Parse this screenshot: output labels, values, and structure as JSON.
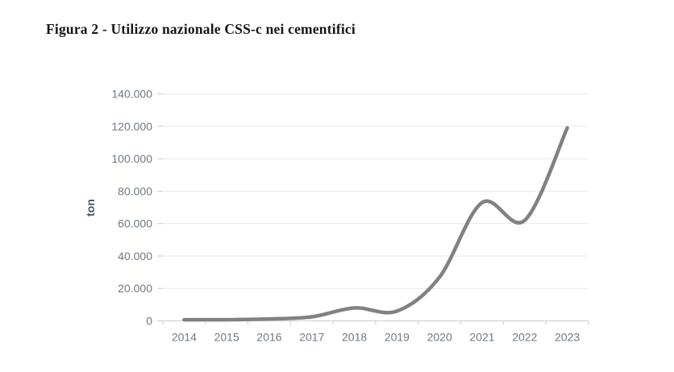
{
  "figure": {
    "title": "Figura 2 - Utilizzo nazionale CSS-c nei cementifici"
  },
  "chart_data": {
    "type": "line",
    "title": "Figura 2 - Utilizzo nazionale CSS-c nei cementifici",
    "series": [
      {
        "name": "Utilizzo nazionale CSS-c",
        "values": [
          700,
          700,
          1200,
          2500,
          8000,
          6000,
          27000,
          73000,
          62000,
          119000
        ]
      }
    ],
    "categories": [
      "2014",
      "2015",
      "2016",
      "2017",
      "2018",
      "2019",
      "2020",
      "2021",
      "2022",
      "2023"
    ],
    "xlabel": "",
    "ylabel": "ton",
    "ylim": [
      0,
      140000
    ],
    "ytick_interval": 20000,
    "ytick_labels": [
      "0",
      "20.000",
      "40.000",
      "60.000",
      "80.000",
      "100.000",
      "120.000",
      "140.000"
    ],
    "grid": "horizontal",
    "smooth": true,
    "markers": "none",
    "legend": "none",
    "colors": {
      "line": "#818181",
      "gridline": "#e8e8e8",
      "axis_line": "#d3d3d3",
      "tick": "#c9ccd1",
      "tick_label": "#6e7983",
      "axis_title": "#44546a",
      "figure_title": "#161616",
      "background": "#ffffff"
    }
  }
}
